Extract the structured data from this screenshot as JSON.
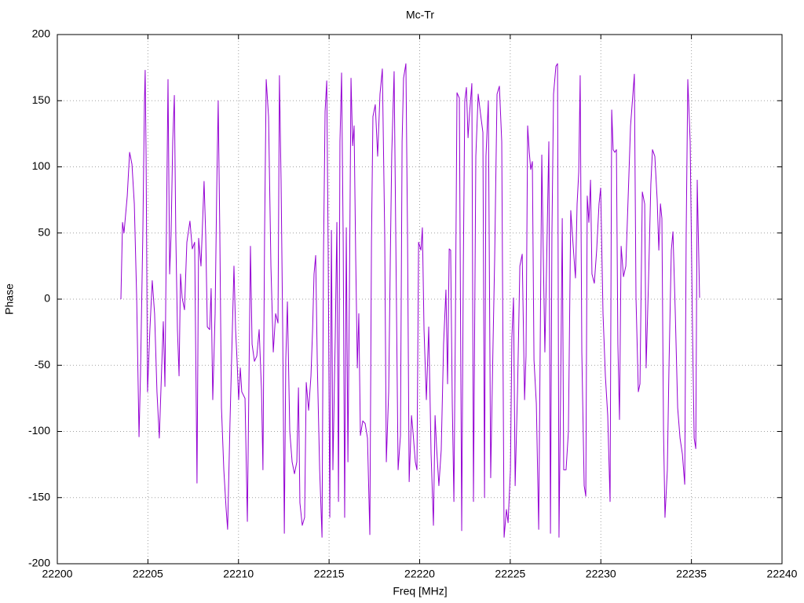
{
  "chart_data": {
    "type": "line",
    "title": "Mc-Tr",
    "x_label": "Freq [MHz]",
    "y_label": "Phase",
    "color": "#9400d3",
    "grid": true,
    "xlim": [
      22200,
      22240
    ],
    "xticks": [
      22200,
      22205,
      22210,
      22215,
      22220,
      22225,
      22230,
      22235,
      22240
    ],
    "ylim": [
      -200,
      200
    ],
    "yticks": [
      -200,
      -150,
      -100,
      -50,
      0,
      50,
      100,
      150,
      200
    ],
    "x": [
      22203.51,
      22203.6,
      22203.68,
      22203.86,
      22203.99,
      22204.12,
      22204.25,
      22204.38,
      22204.51,
      22204.59,
      22204.72,
      22204.81,
      22204.85,
      22204.9,
      22204.98,
      22205.11,
      22205.24,
      22205.37,
      22205.5,
      22205.63,
      22205.76,
      22205.85,
      22205.94,
      22206.02,
      22206.11,
      22206.2,
      22206.28,
      22206.37,
      22206.46,
      22206.54,
      22206.63,
      22206.72,
      22206.8,
      22206.89,
      22207.02,
      22207.15,
      22207.32,
      22207.45,
      22207.58,
      22207.71,
      22207.8,
      22207.93,
      22208.1,
      22208.19,
      22208.28,
      22208.41,
      22208.49,
      22208.58,
      22208.71,
      22208.8,
      22208.88,
      22208.97,
      22209.06,
      22209.19,
      22209.32,
      22209.4,
      22209.53,
      22209.75,
      22209.84,
      22209.92,
      22210.01,
      22210.1,
      22210.18,
      22210.36,
      22210.49,
      22210.57,
      22210.66,
      22210.75,
      22210.88,
      22211.01,
      22211.14,
      22211.27,
      22211.35,
      22211.44,
      22211.53,
      22211.66,
      22211.79,
      22211.92,
      22212.05,
      22212.18,
      22212.26,
      22212.35,
      22212.44,
      22212.53,
      22212.61,
      22212.7,
      22212.83,
      22212.96,
      22213.09,
      22213.22,
      22213.31,
      22213.39,
      22213.52,
      22213.65,
      22213.74,
      22213.87,
      22214.0,
      22214.09,
      22214.17,
      22214.26,
      22214.35,
      22214.48,
      22214.61,
      22214.69,
      22214.78,
      22214.87,
      22214.95,
      22215.04,
      22215.13,
      22215.21,
      22215.34,
      22215.43,
      22215.52,
      22215.6,
      22215.69,
      22215.78,
      22215.86,
      22215.95,
      22216.04,
      22216.12,
      22216.21,
      22216.3,
      22216.38,
      22216.47,
      22216.56,
      22216.64,
      22216.73,
      22216.86,
      22216.99,
      22217.12,
      22217.25,
      22217.34,
      22217.42,
      22217.55,
      22217.68,
      22217.81,
      22217.94,
      22218.07,
      22218.16,
      22218.29,
      22218.38,
      22218.46,
      22218.59,
      22218.68,
      22218.81,
      22218.94,
      22219.03,
      22219.11,
      22219.24,
      22219.33,
      22219.42,
      22219.55,
      22219.63,
      22219.76,
      22219.85,
      22219.94,
      22220.07,
      22220.15,
      22220.24,
      22220.37,
      22220.5,
      22220.63,
      22220.76,
      22220.85,
      22220.93,
      22221.06,
      22221.19,
      22221.32,
      22221.45,
      22221.54,
      22221.63,
      22221.71,
      22221.8,
      22221.89,
      22221.97,
      22222.06,
      22222.19,
      22222.32,
      22222.41,
      22222.49,
      22222.58,
      22222.67,
      22222.75,
      22222.88,
      22222.97,
      22223.1,
      22223.23,
      22223.36,
      22223.49,
      22223.58,
      22223.66,
      22223.79,
      22223.92,
      22224.05,
      22224.14,
      22224.27,
      22224.4,
      22224.53,
      22224.66,
      22224.79,
      22224.88,
      22225.01,
      22225.09,
      22225.18,
      22225.27,
      22225.4,
      22225.53,
      22225.66,
      22225.79,
      22225.87,
      22225.96,
      22226.05,
      22226.13,
      22226.22,
      22226.31,
      22226.44,
      22226.57,
      22226.65,
      22226.74,
      22226.83,
      22226.91,
      22227.0,
      22227.13,
      22227.22,
      22227.3,
      22227.39,
      22227.52,
      22227.61,
      22227.69,
      22227.78,
      22227.87,
      22227.95,
      22228.08,
      22228.21,
      22228.34,
      22228.43,
      22228.52,
      22228.6,
      22228.69,
      22228.78,
      22228.86,
      22228.95,
      22229.08,
      22229.17,
      22229.25,
      22229.34,
      22229.43,
      22229.51,
      22229.64,
      22229.77,
      22229.9,
      22229.99,
      22230.12,
      22230.25,
      22230.38,
      22230.51,
      22230.6,
      22230.68,
      22230.77,
      22230.86,
      22230.94,
      22231.03,
      22231.12,
      22231.25,
      22231.38,
      22231.51,
      22231.64,
      22231.77,
      22231.85,
      22231.94,
      22232.07,
      22232.16,
      22232.29,
      22232.42,
      22232.5,
      22232.63,
      22232.76,
      22232.85,
      22232.98,
      22233.11,
      22233.2,
      22233.29,
      22233.37,
      22233.46,
      22233.54,
      22233.67,
      22233.76,
      22233.89,
      22233.98,
      22234.11,
      22234.24,
      22234.37,
      22234.5,
      22234.63,
      22234.71,
      22234.8,
      22234.93,
      22235.06,
      22235.15,
      22235.24,
      22235.32,
      22235.45
    ],
    "values": [
      0,
      58,
      50,
      78,
      111,
      102,
      72,
      1,
      -104,
      -58,
      49,
      150,
      173,
      108,
      -70,
      -23,
      14,
      -11,
      -70,
      -105,
      -52,
      -17,
      -66,
      49,
      166,
      19,
      49,
      119,
      154,
      49,
      -23,
      -58,
      19,
      1,
      -8,
      43,
      59,
      38,
      43,
      -139,
      46,
      25,
      89,
      49,
      -21,
      -23,
      8,
      -76,
      -11,
      84,
      150,
      49,
      -82,
      -129,
      -159,
      -174,
      -94,
      25,
      -23,
      -46,
      -76,
      -52,
      -70,
      -75,
      -168,
      -70,
      40,
      -34,
      -47,
      -43,
      -23,
      -69,
      -129,
      49,
      166,
      138,
      25,
      -40,
      -11,
      -18,
      169,
      90,
      -23,
      -177,
      -46,
      -2,
      -100,
      -123,
      -132,
      -123,
      -67,
      -154,
      -171,
      -165,
      -63,
      -84,
      -58,
      -23,
      19,
      33,
      -49,
      -129,
      -180,
      31,
      142,
      165,
      37,
      -165,
      52,
      -129,
      -29,
      58,
      -153,
      119,
      171,
      43,
      -165,
      54,
      -123,
      1,
      167,
      116,
      131,
      31,
      -52,
      -11,
      -103,
      -92,
      -94,
      -105,
      -178,
      43,
      138,
      147,
      108,
      155,
      174,
      49,
      -123,
      -70,
      31,
      110,
      172,
      49,
      -129,
      -103,
      119,
      167,
      178,
      49,
      -138,
      -88,
      -100,
      -123,
      -129,
      43,
      37,
      54,
      -23,
      -76,
      -21,
      -117,
      -171,
      -88,
      -111,
      -141,
      -114,
      -34,
      7,
      -64,
      38,
      37,
      -79,
      -153,
      -23,
      156,
      152,
      -175,
      25,
      150,
      160,
      122,
      140,
      163,
      -153,
      108,
      155,
      140,
      126,
      -150,
      108,
      150,
      -135,
      -34,
      31,
      155,
      161,
      119,
      -180,
      -159,
      -169,
      -129,
      -29,
      1,
      -141,
      -70,
      25,
      34,
      -76,
      -43,
      131,
      111,
      98,
      104,
      -46,
      -79,
      -174,
      -40,
      109,
      28,
      -40,
      22,
      119,
      -177,
      49,
      155,
      176,
      178,
      -180,
      -70,
      61,
      -129,
      -129,
      -100,
      67,
      49,
      31,
      16,
      72,
      96,
      169,
      -40,
      -141,
      -149,
      78,
      58,
      90,
      19,
      12,
      37,
      72,
      84,
      -11,
      -58,
      -88,
      -153,
      143,
      113,
      111,
      113,
      -34,
      -91,
      40,
      17,
      25,
      78,
      131,
      155,
      170,
      1,
      -70,
      -64,
      81,
      72,
      -52,
      13,
      87,
      113,
      108,
      75,
      37,
      72,
      61,
      -100,
      -165,
      -129,
      -52,
      37,
      51,
      -11,
      -82,
      -105,
      -117,
      -140,
      49,
      166,
      119,
      -23,
      -105,
      -113,
      90,
      1
    ]
  }
}
